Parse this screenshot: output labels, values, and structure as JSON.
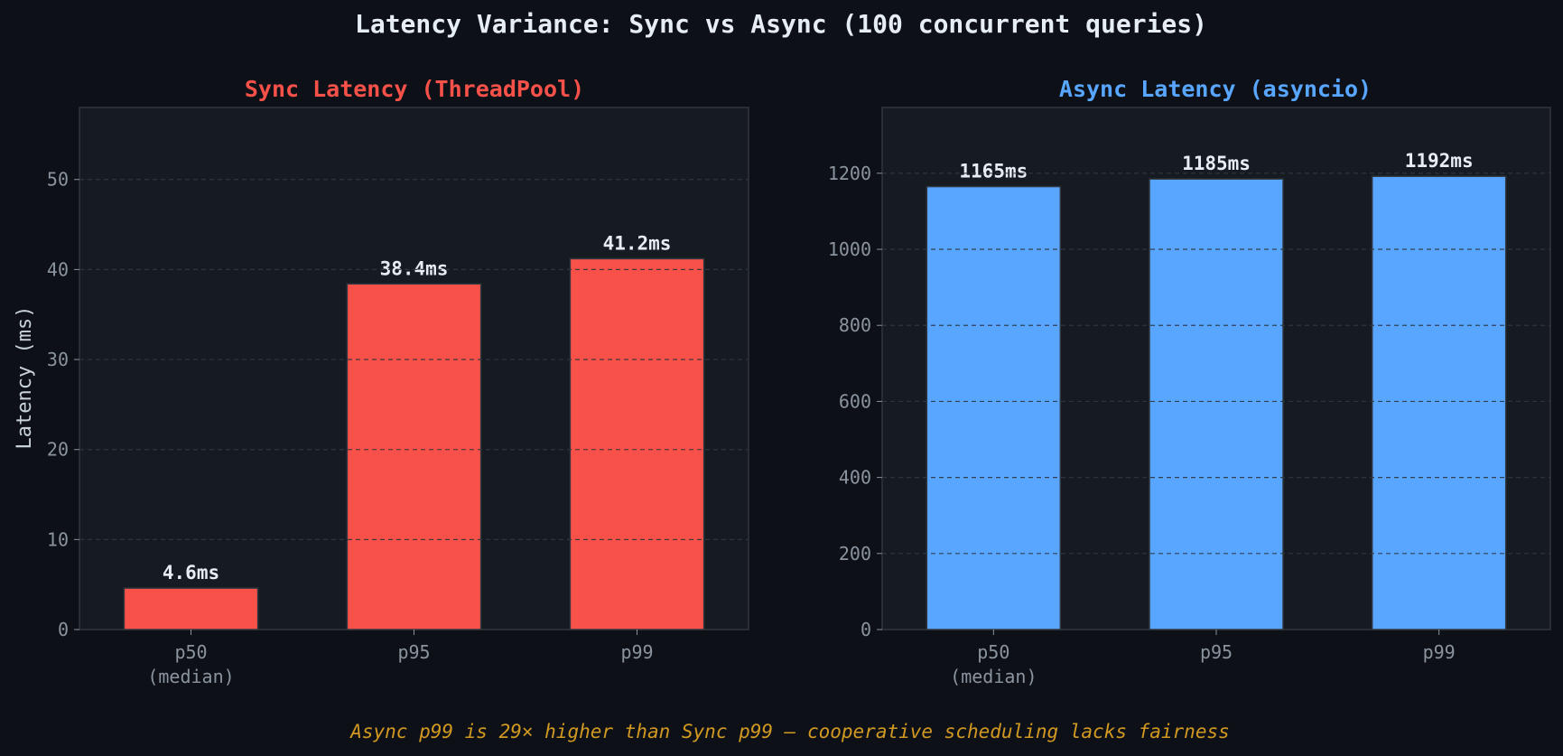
{
  "figure": {
    "title": "Latency Variance: Sync vs Async (100 concurrent queries)",
    "caption": "Async p99 is 29× higher than Sync p99 — cooperative scheduling lacks fairness",
    "caption_color": "#d29922",
    "background": "#0d1117",
    "panel_background": "#161b22"
  },
  "chart_data": [
    {
      "type": "bar",
      "title": "Sync Latency (ThreadPool)",
      "title_color": "#f85149",
      "bar_color": "#f85149",
      "ylabel": "Latency (ms)",
      "categories": [
        "p50\n(median)",
        "p95",
        "p99"
      ],
      "values": [
        4.6,
        38.4,
        41.2
      ],
      "value_labels": [
        "4.6ms",
        "38.4ms",
        "41.2ms"
      ],
      "ylim": [
        0,
        58
      ],
      "yticks": [
        0,
        10,
        20,
        30,
        40,
        50
      ],
      "grid": true
    },
    {
      "type": "bar",
      "title": "Async Latency (asyncio)",
      "title_color": "#58a6ff",
      "bar_color": "#58a6ff",
      "ylabel": "",
      "categories": [
        "p50\n(median)",
        "p95",
        "p99"
      ],
      "values": [
        1165,
        1185,
        1192
      ],
      "value_labels": [
        "1165ms",
        "1185ms",
        "1192ms"
      ],
      "ylim": [
        0,
        1373
      ],
      "yticks": [
        0,
        200,
        400,
        600,
        800,
        1000,
        1200
      ],
      "grid": true
    }
  ]
}
